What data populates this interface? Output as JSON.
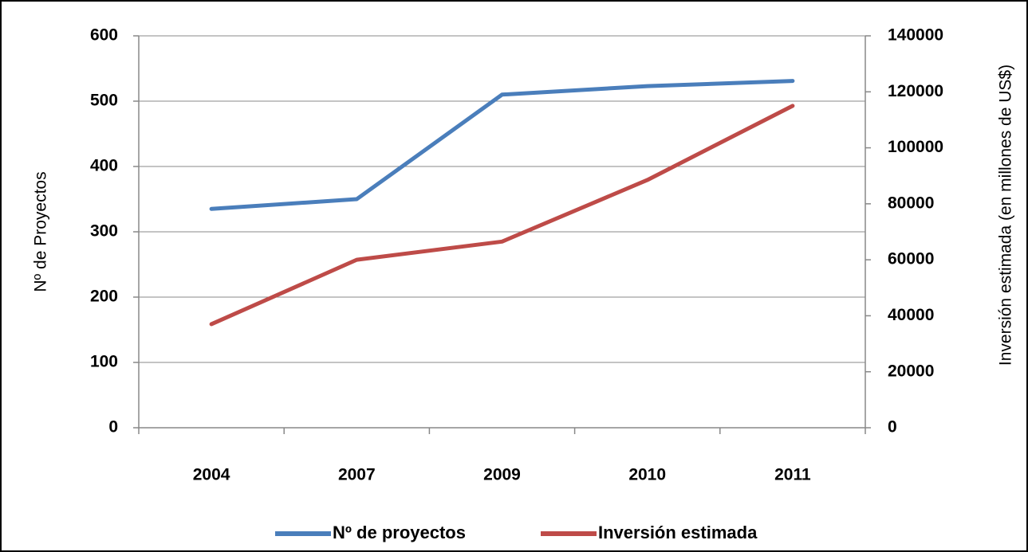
{
  "chart_data": {
    "type": "line",
    "categories": [
      "2004",
      "2007",
      "2009",
      "2010",
      "2011"
    ],
    "series": [
      {
        "name": "Nº de proyectos",
        "color": "#4a7ebb",
        "values": [
          335,
          350,
          510,
          523,
          531
        ]
      },
      {
        "name": "Inversión estimada",
        "color": "#be4b48",
        "axis": "y2",
        "values": [
          37000,
          60000,
          66500,
          88500,
          115000
        ]
      }
    ],
    "ylabel": "Nº de Proyectos",
    "y2label": "Inversión estimada (en millones de US$)",
    "ylim": [
      0,
      600
    ],
    "yticks": [
      0,
      100,
      200,
      300,
      400,
      500,
      600
    ],
    "y2lim": [
      0,
      140000
    ],
    "y2ticks": [
      0,
      20000,
      40000,
      60000,
      80000,
      100000,
      120000,
      140000
    ],
    "grid": true,
    "legend": "bottom"
  }
}
